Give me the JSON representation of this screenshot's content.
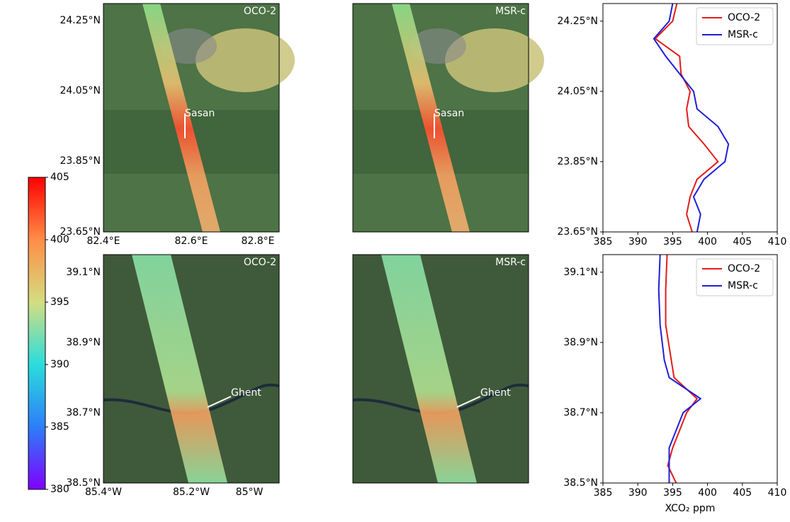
{
  "colorbar": {
    "lim": [
      380,
      405
    ],
    "ticks": [
      380,
      385,
      390,
      395,
      400,
      405
    ]
  },
  "maps": [
    {
      "label": "OCO-2",
      "site": "Sasan",
      "xticks": [
        "82.4°E",
        "82.6°E",
        "82.8°E"
      ],
      "yticks": [
        "24.25°N",
        "24.05°N",
        "23.85°N",
        "23.65°N"
      ]
    },
    {
      "label": "MSR-c",
      "site": "Sasan"
    },
    {
      "label": "OCO-2",
      "site": "Ghent",
      "xticks": [
        "85.4°W",
        "85.2°W",
        "85°W"
      ],
      "yticks": [
        "39.1°N",
        "38.9°N",
        "38.7°N",
        "38.5°N"
      ]
    },
    {
      "label": "MSR-c",
      "site": "Ghent"
    }
  ],
  "chart_data": [
    {
      "type": "line",
      "legend": "upper right",
      "y": [
        24.3,
        24.25,
        24.2,
        24.15,
        24.1,
        24.05,
        24.0,
        23.95,
        23.9,
        23.85,
        23.8,
        23.75,
        23.7,
        23.65
      ],
      "ylim": [
        23.65,
        24.3
      ],
      "yticks": [
        {
          "value": 24.25,
          "label": "24.25°N"
        },
        {
          "value": 24.05,
          "label": "24.05°N"
        },
        {
          "value": 23.85,
          "label": "23.85°N"
        },
        {
          "value": 23.65,
          "label": "23.65°N"
        }
      ],
      "xlim": [
        385,
        410
      ],
      "xticks": [
        385,
        390,
        395,
        400,
        405,
        410
      ],
      "series": [
        {
          "name": "OCO-2",
          "color": "#e41a1c",
          "values": [
            395.6,
            395.0,
            392.5,
            396.0,
            396.2,
            397.5,
            397.0,
            397.3,
            399.5,
            401.5,
            398.5,
            397.5,
            397.0,
            397.8
          ]
        },
        {
          "name": "MSR-c",
          "color": "#1f1fd6",
          "values": [
            395.0,
            394.5,
            392.3,
            394.0,
            396.0,
            398.0,
            398.5,
            401.5,
            403.0,
            402.5,
            399.5,
            398.0,
            399.0,
            398.5
          ]
        }
      ]
    },
    {
      "type": "line",
      "legend": "upper right",
      "xlabel": "XCO₂ ppm",
      "y": [
        39.15,
        39.05,
        38.95,
        38.85,
        38.8,
        38.74,
        38.7,
        38.65,
        38.6,
        38.55,
        38.5
      ],
      "ylim": [
        38.5,
        39.15
      ],
      "yticks": [
        {
          "value": 39.1,
          "label": "39.1°N"
        },
        {
          "value": 38.9,
          "label": "38.9°N"
        },
        {
          "value": 38.7,
          "label": "38.7°N"
        },
        {
          "value": 38.5,
          "label": "38.5°N"
        }
      ],
      "xlim": [
        385,
        410
      ],
      "xticks": [
        385,
        390,
        395,
        400,
        405,
        410
      ],
      "series": [
        {
          "name": "OCO-2",
          "color": "#e41a1c",
          "values": [
            394.2,
            394.0,
            394.0,
            394.8,
            395.2,
            398.5,
            397.0,
            396.0,
            395.0,
            394.3,
            395.5
          ]
        },
        {
          "name": "MSR-c",
          "color": "#1f1fd6",
          "values": [
            393.2,
            393.0,
            393.2,
            393.8,
            394.5,
            399.0,
            396.5,
            395.5,
            394.5,
            394.5,
            394.5
          ]
        }
      ]
    }
  ]
}
